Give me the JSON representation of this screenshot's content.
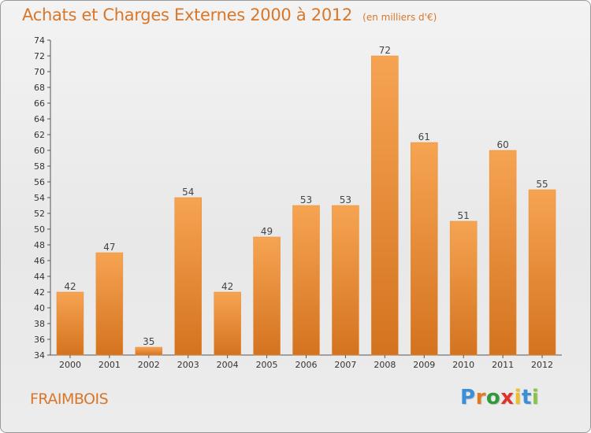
{
  "chart_data": {
    "type": "bar",
    "title": "Achats et Charges Externes 2000 à 2012",
    "subtitle": "(en milliers d'€)",
    "categories": [
      "2000",
      "2001",
      "2002",
      "2003",
      "2004",
      "2005",
      "2006",
      "2007",
      "2008",
      "2009",
      "2010",
      "2011",
      "2012"
    ],
    "values": [
      42,
      47,
      35,
      54,
      42,
      49,
      53,
      53,
      72,
      61,
      51,
      60,
      55
    ],
    "ylim": [
      34,
      74
    ],
    "ytick_step": 2,
    "grid": false,
    "legend": "none",
    "bar_color_top": "#f6a452",
    "bar_color_bottom": "#d4731f"
  },
  "commune": "FRAIMBOIS",
  "logo": {
    "letters": [
      "P",
      "r",
      "o",
      "x",
      "i",
      "t",
      "i"
    ],
    "colors": [
      "#3a8fd8",
      "#e07a20",
      "#2f9a3a",
      "#e0312a",
      "#f0c020",
      "#3a8fd8",
      "#8bc34a"
    ]
  }
}
